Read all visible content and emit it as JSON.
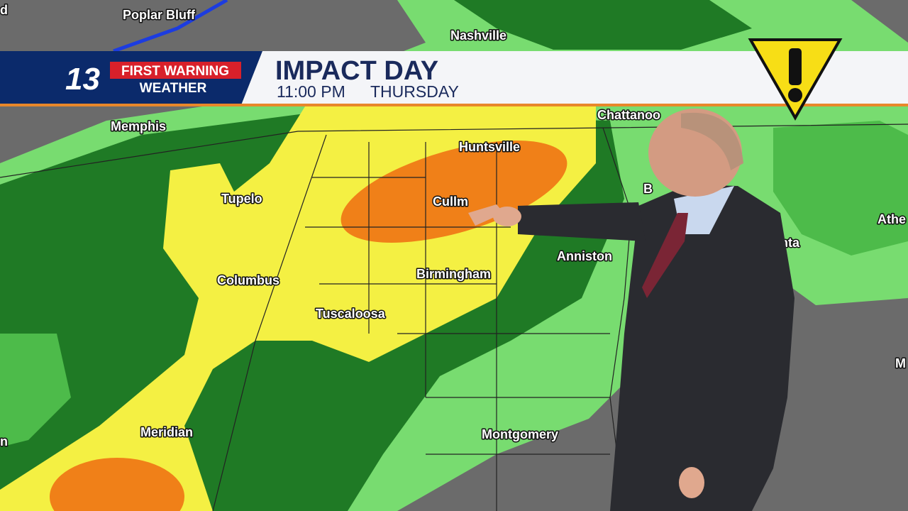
{
  "brand": {
    "channel": "13",
    "first_warning": "FIRST WARNING",
    "weather": "WEATHER"
  },
  "header": {
    "title": "IMPACT DAY",
    "time": "11:00 PM",
    "day": "THURSDAY"
  },
  "map": {
    "cities": [
      "d",
      "Poplar Bluff",
      "Nashville",
      "Memphis",
      "Chattanoo",
      "Huntsville",
      "Tupelo",
      "B",
      "Cullm",
      "Athe",
      "nta",
      "Anniston",
      "Columbus",
      "Birmingham",
      "Tuscaloosa",
      "M",
      "Meridian",
      "Montgomery",
      "n"
    ]
  }
}
